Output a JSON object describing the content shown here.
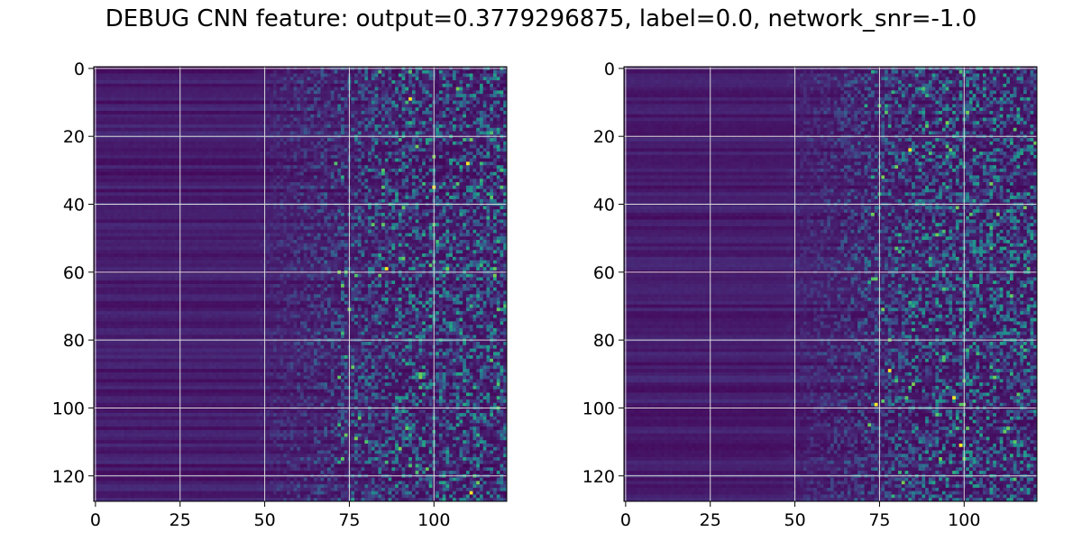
{
  "figure": {
    "title": "DEBUG CNN feature: output=0.3779296875, label=0.0, network_snr=-1.0"
  },
  "colors": {
    "colormap": "viridis",
    "grid": "#d9d9d9",
    "axes": "#000000"
  },
  "chart_data": [
    {
      "type": "heatmap",
      "title": "",
      "xlabel": "",
      "ylabel": "",
      "rows": 128,
      "cols": 122,
      "xlim": [
        -0.5,
        121.5
      ],
      "ylim": [
        127.5,
        -0.5
      ],
      "xticks": [
        0,
        25,
        50,
        75,
        100
      ],
      "yticks": [
        0,
        20,
        40,
        60,
        80,
        100,
        120
      ],
      "grid": true,
      "colormap": "viridis",
      "description_of_values": "low, row-banded intensity for columns 0-45, increasing sparse high-intensity speckle noise for columns 60-121; isolated bright yellow pixels near (93,9), (86,59), (111,125)",
      "bright_points": [
        [
          93,
          9
        ],
        [
          86,
          59
        ],
        [
          111,
          125
        ],
        [
          110,
          28
        ],
        [
          100,
          35
        ]
      ]
    },
    {
      "type": "heatmap",
      "title": "",
      "xlabel": "",
      "ylabel": "",
      "rows": 128,
      "cols": 122,
      "xlim": [
        -0.5,
        121.5
      ],
      "ylim": [
        127.5,
        -0.5
      ],
      "xticks": [
        0,
        25,
        50,
        75,
        100
      ],
      "yticks": [
        0,
        20,
        40,
        60,
        80,
        100,
        120
      ],
      "grid": true,
      "colormap": "viridis",
      "description_of_values": "low, row-banded intensity for columns 0-45, increasing sparse high-intensity speckle noise for columns 60-121; isolated bright yellow pixels near (74,99), (99,111), (97,97)",
      "bright_points": [
        [
          74,
          99
        ],
        [
          99,
          111
        ],
        [
          97,
          97
        ],
        [
          84,
          24
        ],
        [
          78,
          89
        ]
      ]
    }
  ]
}
